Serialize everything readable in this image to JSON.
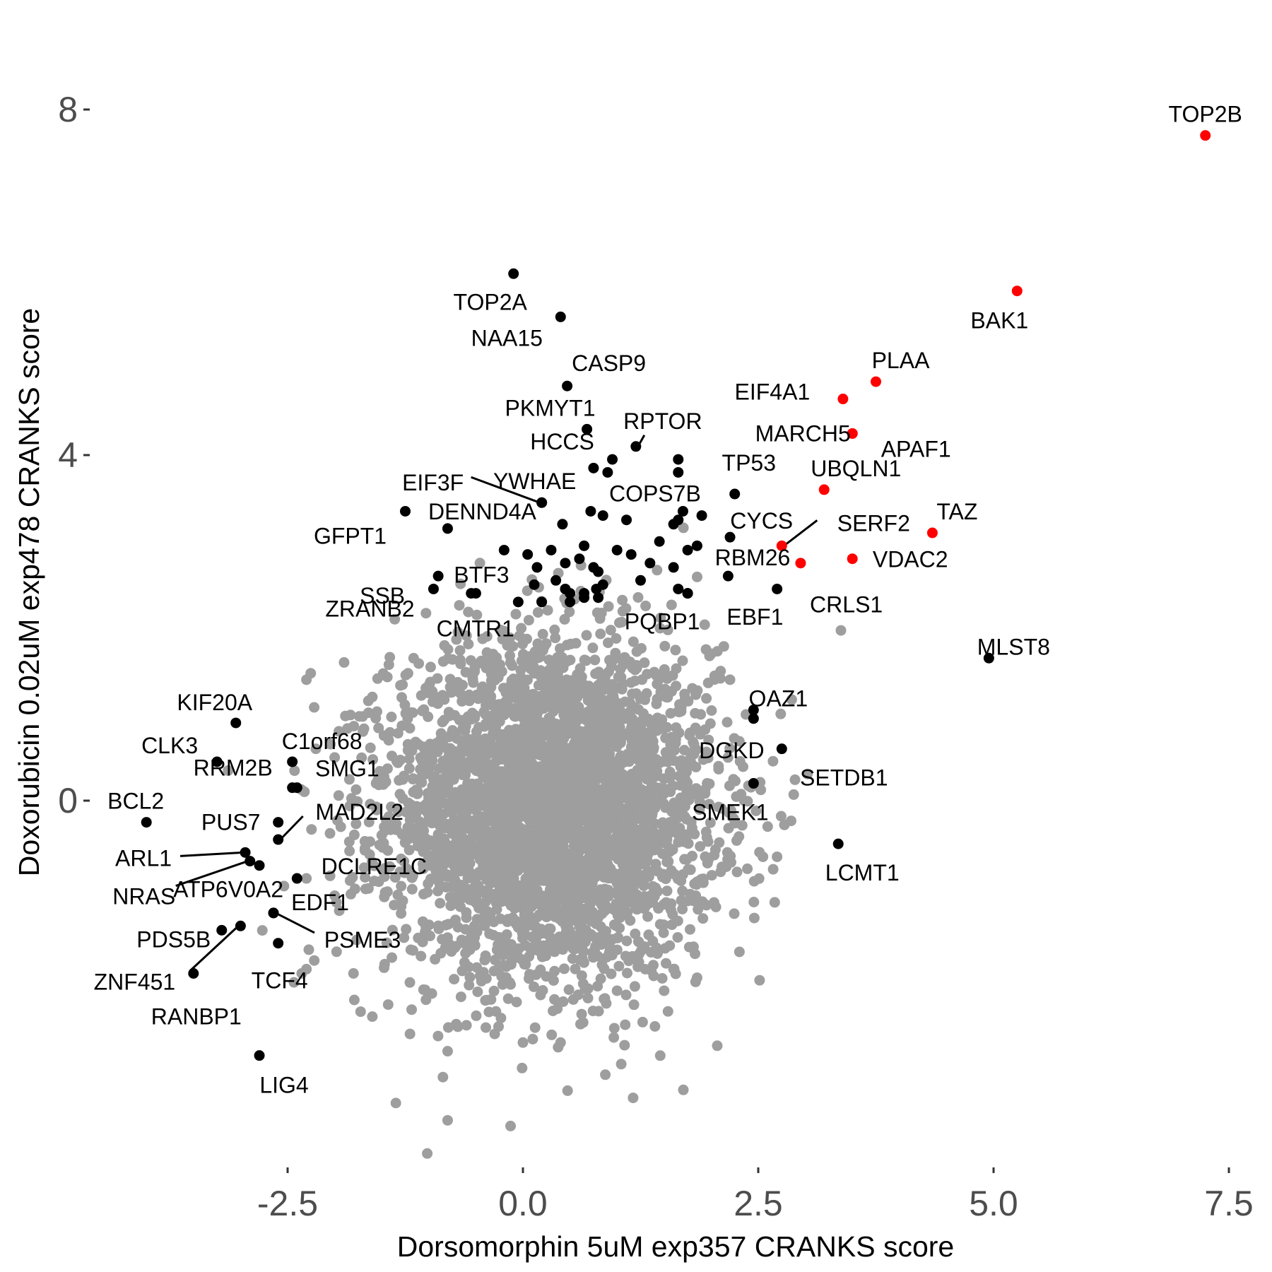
{
  "chart_data": {
    "type": "scatter",
    "xlabel": "Dorsomorphin 5uM exp357 CRANKS score",
    "ylabel": "Doxorubicin 0.02uM exp478 CRANKS score",
    "xlim": [
      -4.4,
      7.6
    ],
    "ylim": [
      -3.95,
      8.3
    ],
    "x_ticks": [
      {
        "value": -2.5,
        "label": "-2.5"
      },
      {
        "value": 0.0,
        "label": "0.0"
      },
      {
        "value": 2.5,
        "label": "2.5"
      },
      {
        "value": 5.0,
        "label": "5.0"
      },
      {
        "value": 7.5,
        "label": "7.5"
      }
    ],
    "y_ticks": [
      {
        "value": 0,
        "label": "0"
      },
      {
        "value": 4,
        "label": "4"
      },
      {
        "value": 8,
        "label": "8"
      }
    ],
    "grid": false,
    "colors": {
      "background": "#9e9e9e",
      "highlight": "#000000",
      "top_hits": "#ff0000"
    },
    "background_cloud": {
      "color": "#9e9e9e",
      "description": "approx. 18000 unlabeled genes",
      "center": [
        0.3,
        -0.1
      ],
      "sd": [
        0.85,
        0.95
      ],
      "outliers": [
        [
          -2.3,
          1.4
        ],
        [
          -1.9,
          1.6
        ],
        [
          -1.6,
          1.2
        ],
        [
          2.0,
          1.7
        ],
        [
          2.1,
          1.5
        ],
        [
          2.2,
          1.4
        ],
        [
          2.35,
          0.0
        ],
        [
          2.45,
          0.2
        ],
        [
          2.6,
          -0.3
        ],
        [
          2.55,
          -0.65
        ],
        [
          -2.3,
          -0.9
        ],
        [
          -2.0,
          -1.1
        ],
        [
          -2.3,
          -1.95
        ],
        [
          -2.35,
          -2.0
        ],
        [
          -1.8,
          -2.0
        ],
        [
          -1.2,
          -2.7
        ],
        [
          -1.6,
          -2.5
        ],
        [
          -0.8,
          -2.9
        ],
        [
          -0.6,
          -2.6
        ],
        [
          -0.3,
          -2.7
        ],
        [
          0.0,
          -2.8
        ],
        [
          0.4,
          -2.8
        ],
        [
          1.0,
          -2.2
        ],
        [
          1.5,
          -2.2
        ],
        [
          1.6,
          -1.95
        ],
        [
          1.85,
          -2.05
        ],
        [
          2.3,
          -1.75
        ],
        [
          2.7,
          -0.65
        ],
        [
          -0.85,
          -3.2
        ],
        [
          -1.35,
          -3.5
        ],
        [
          -0.8,
          -3.7
        ],
        [
          -2.2,
          0.6
        ],
        [
          -2.0,
          0.5
        ],
        [
          -1.7,
          0.8
        ],
        [
          1.8,
          1.3
        ],
        [
          -1.5,
          -0.4
        ]
      ]
    },
    "labeled_genes": [
      {
        "name": "TOP2B",
        "x": 7.25,
        "y": 7.7,
        "color": "#ff0000",
        "label_dx": 0,
        "label_dy": -30,
        "anchor": "middle",
        "leader": false
      },
      {
        "name": "BAK1",
        "x": 5.25,
        "y": 5.9,
        "color": "#ff0000",
        "label_dx": -25,
        "label_dy": 42,
        "anchor": "middle",
        "leader": false
      },
      {
        "name": "PLAA",
        "x": 3.75,
        "y": 4.85,
        "color": "#ff0000",
        "label_dx": 35,
        "label_dy": -30,
        "anchor": "middle",
        "leader": false
      },
      {
        "name": "EIF4A1",
        "x": 3.4,
        "y": 4.65,
        "color": "#ff0000",
        "label_dx": -100,
        "label_dy": -10,
        "anchor": "middle",
        "leader": false
      },
      {
        "name": "MARCH5",
        "x": 3.5,
        "y": 4.25,
        "color": "#ff0000",
        "label_dx": -70,
        "label_dy": 0,
        "anchor": "middle",
        "leader": false
      },
      {
        "name": "APAF1",
        "x": 3.5,
        "y": 4.25,
        "color": "#ff0000",
        "label_dx": 90,
        "label_dy": 22,
        "anchor": "middle",
        "leader": false
      },
      {
        "name": "UBQLN1",
        "x": 3.2,
        "y": 3.6,
        "color": "#ff0000",
        "label_dx": 45,
        "label_dy": -30,
        "anchor": "middle",
        "leader": false
      },
      {
        "name": "TAZ",
        "x": 4.35,
        "y": 3.1,
        "color": "#ff0000",
        "label_dx": 35,
        "label_dy": -30,
        "anchor": "middle",
        "leader": false
      },
      {
        "name": "SERF2",
        "x": 2.75,
        "y": 2.95,
        "color": "#ff0000",
        "label_dx": 130,
        "label_dy": -32,
        "anchor": "middle",
        "leader": true,
        "lx2": 50,
        "ly2": -36
      },
      {
        "name": "RBM26",
        "x": 2.95,
        "y": 2.75,
        "color": "#ff0000",
        "label_dx": -68,
        "label_dy": -8,
        "anchor": "middle",
        "leader": false
      },
      {
        "name": "VDAC2",
        "x": 3.5,
        "y": 2.8,
        "color": "#ff0000",
        "label_dx": 82,
        "label_dy": 1,
        "anchor": "middle",
        "leader": false
      },
      {
        "name": "TOP2A",
        "x": -0.1,
        "y": 6.1,
        "color": "#000000",
        "label_dx": -33,
        "label_dy": 40,
        "anchor": "middle",
        "leader": false
      },
      {
        "name": "NAA15",
        "x": 0.4,
        "y": 5.6,
        "color": "#000000",
        "label_dx": -76,
        "label_dy": 30,
        "anchor": "middle",
        "leader": false
      },
      {
        "name": "CASP9",
        "x": 0.47,
        "y": 4.8,
        "color": "#000000",
        "label_dx": 59,
        "label_dy": -32,
        "anchor": "middle",
        "leader": false
      },
      {
        "name": "PKMYT1",
        "x": 0.68,
        "y": 4.3,
        "color": "#000000",
        "label_dx": -52,
        "label_dy": -30,
        "anchor": "middle",
        "leader": false
      },
      {
        "name": "RPTOR",
        "x": 1.2,
        "y": 4.1,
        "color": "#000000",
        "label_dx": 38,
        "label_dy": -36,
        "anchor": "middle",
        "leader": true,
        "lx2": 12,
        "ly2": -16
      },
      {
        "name": "HCCS",
        "x": 0.95,
        "y": 3.95,
        "color": "#000000",
        "label_dx": -71,
        "label_dy": -25,
        "anchor": "middle",
        "leader": false
      },
      {
        "name": "TP53",
        "x": 1.65,
        "y": 3.95,
        "color": "#000000",
        "label_dx": 100,
        "label_dy": 5,
        "anchor": "middle",
        "leader": false
      },
      {
        "name": "COPS7B",
        "x": 0.9,
        "y": 3.8,
        "color": "#000000",
        "label_dx": 67,
        "label_dy": 30,
        "anchor": "middle",
        "leader": false
      },
      {
        "name": "EIF3F",
        "x": 0.2,
        "y": 3.45,
        "color": "#000000",
        "label_dx": -154,
        "label_dy": -28,
        "anchor": "middle",
        "leader": true,
        "lx2": -100,
        "ly2": -36
      },
      {
        "name": "YWHAE",
        "x": 0.2,
        "y": 3.45,
        "color": "#000000",
        "label_dx": -10,
        "label_dy": -30,
        "anchor": "middle",
        "leader": false
      },
      {
        "name": "CYCS",
        "x": 2.25,
        "y": 3.55,
        "color": "#000000",
        "label_dx": 38,
        "label_dy": 38,
        "anchor": "middle",
        "leader": false
      },
      {
        "name": "DENND4A",
        "x": -0.8,
        "y": 3.15,
        "color": "#000000",
        "label_dx": 49,
        "label_dy": -24,
        "anchor": "middle",
        "leader": false
      },
      {
        "name": "GFPT1",
        "x": -1.25,
        "y": 3.35,
        "color": "#000000",
        "label_dx": -78,
        "label_dy": 35,
        "anchor": "middle",
        "leader": false
      },
      {
        "name": "SSB",
        "x": -0.9,
        "y": 2.6,
        "color": "#000000",
        "label_dx": -79,
        "label_dy": 28,
        "anchor": "middle",
        "leader": false
      },
      {
        "name": "BTF3",
        "x": -0.5,
        "y": 2.4,
        "color": "#000000",
        "label_dx": 8,
        "label_dy": -26,
        "anchor": "middle",
        "leader": false
      },
      {
        "name": "ZRANB2",
        "x": -0.95,
        "y": 2.45,
        "color": "#000000",
        "label_dx": -90,
        "label_dy": 28,
        "anchor": "middle",
        "leader": false
      },
      {
        "name": "CMTR1",
        "x": -0.55,
        "y": 2.4,
        "color": "#000000",
        "label_dx": 6,
        "label_dy": 50,
        "anchor": "middle",
        "leader": false
      },
      {
        "name": "PQBP1",
        "x": 1.75,
        "y": 2.4,
        "color": "#000000",
        "label_dx": -36,
        "label_dy": 40,
        "anchor": "middle",
        "leader": false
      },
      {
        "name": "EBF1",
        "x": 2.18,
        "y": 2.6,
        "color": "#000000",
        "label_dx": 38,
        "label_dy": 58,
        "anchor": "middle",
        "leader": false
      },
      {
        "name": "CRLS1",
        "x": 2.7,
        "y": 2.45,
        "color": "#000000",
        "label_dx": 98,
        "label_dy": 22,
        "anchor": "middle",
        "leader": false
      },
      {
        "name": "MLST8",
        "x": 4.95,
        "y": 1.65,
        "color": "#000000",
        "label_dx": 35,
        "label_dy": -16,
        "anchor": "middle",
        "leader": false
      },
      {
        "name": "OAZ1",
        "x": 2.45,
        "y": 1.05,
        "color": "#000000",
        "label_dx": 35,
        "label_dy": -16,
        "anchor": "middle",
        "leader": false
      },
      {
        "name": "DGKD",
        "x": 2.45,
        "y": 0.95,
        "color": "#000000",
        "label_dx": -31,
        "label_dy": 45,
        "anchor": "middle",
        "leader": false
      },
      {
        "name": "SETDB1",
        "x": 2.75,
        "y": 0.6,
        "color": "#000000",
        "label_dx": 88,
        "label_dy": 41,
        "anchor": "middle",
        "leader": false
      },
      {
        "name": "SMEK1",
        "x": 2.45,
        "y": 0.2,
        "color": "#000000",
        "label_dx": -33,
        "label_dy": 41,
        "anchor": "middle",
        "leader": false
      },
      {
        "name": "LCMT1",
        "x": 3.35,
        "y": -0.5,
        "color": "#000000",
        "label_dx": 34,
        "label_dy": 41,
        "anchor": "middle",
        "leader": false
      },
      {
        "name": "KIF20A",
        "x": -3.05,
        "y": 0.9,
        "color": "#000000",
        "label_dx": -30,
        "label_dy": -29,
        "anchor": "middle",
        "leader": false
      },
      {
        "name": "CLK3",
        "x": -3.25,
        "y": 0.45,
        "color": "#000000",
        "label_dx": -67,
        "label_dy": -23,
        "anchor": "middle",
        "leader": false
      },
      {
        "name": "C1orf68",
        "x": -2.45,
        "y": 0.45,
        "color": "#000000",
        "label_dx": 42,
        "label_dy": -29,
        "anchor": "middle",
        "leader": false
      },
      {
        "name": "RRM2B",
        "x": -2.45,
        "y": 0.15,
        "color": "#000000",
        "label_dx": -84,
        "label_dy": -28,
        "anchor": "middle",
        "leader": false
      },
      {
        "name": "SMG1",
        "x": -2.4,
        "y": 0.15,
        "color": "#000000",
        "label_dx": 71,
        "label_dy": -27,
        "anchor": "middle",
        "leader": false
      },
      {
        "name": "BCL2",
        "x": -4.0,
        "y": -0.25,
        "color": "#000000",
        "label_dx": -15,
        "label_dy": -30,
        "anchor": "middle",
        "leader": false
      },
      {
        "name": "PUS7",
        "x": -2.6,
        "y": -0.25,
        "color": "#000000",
        "label_dx": -67,
        "label_dy": 0,
        "anchor": "middle",
        "leader": false
      },
      {
        "name": "MAD2L2",
        "x": -2.6,
        "y": -0.45,
        "color": "#000000",
        "label_dx": 115,
        "label_dy": -39,
        "anchor": "middle",
        "leader": true,
        "lx2": 35,
        "ly2": -33
      },
      {
        "name": "ARL1",
        "x": -2.95,
        "y": -0.6,
        "color": "#000000",
        "label_dx": -144,
        "label_dy": 8,
        "anchor": "middle",
        "leader": true,
        "lx2": -92,
        "ly2": 5
      },
      {
        "name": "DCLRE1C",
        "x": -2.4,
        "y": -0.9,
        "color": "#000000",
        "label_dx": 109,
        "label_dy": -17,
        "anchor": "middle",
        "leader": false
      },
      {
        "name": "NRAS",
        "x": -2.9,
        "y": -0.7,
        "color": "#000000",
        "label_dx": -150,
        "label_dy": 50,
        "anchor": "middle",
        "leader": true,
        "lx2": -105,
        "ly2": 35
      },
      {
        "name": "ATP6V0A2",
        "x": -2.8,
        "y": -0.75,
        "color": "#000000",
        "label_dx": -44,
        "label_dy": 34,
        "anchor": "middle",
        "leader": false
      },
      {
        "name": "EDF1",
        "x": -2.65,
        "y": -1.3,
        "color": "#000000",
        "label_dx": 66,
        "label_dy": -15,
        "anchor": "middle",
        "leader": false
      },
      {
        "name": "PSME3",
        "x": -2.65,
        "y": -1.3,
        "color": "#000000",
        "label_dx": 126,
        "label_dy": 38,
        "anchor": "middle",
        "leader": true,
        "lx2": 58,
        "ly2": 28
      },
      {
        "name": "PDS5B",
        "x": -3.2,
        "y": -1.5,
        "color": "#000000",
        "label_dx": -68,
        "label_dy": 13,
        "anchor": "middle",
        "leader": false
      },
      {
        "name": "ZNF451",
        "x": -3.0,
        "y": -1.45,
        "color": "#000000",
        "label_dx": -150,
        "label_dy": 79,
        "anchor": "middle",
        "leader": true,
        "lx2": -72,
        "ly2": 64
      },
      {
        "name": "RANBP1",
        "x": -3.5,
        "y": -2.0,
        "color": "#000000",
        "label_dx": 4,
        "label_dy": 61,
        "anchor": "middle",
        "leader": false
      },
      {
        "name": "TCF4",
        "x": -2.6,
        "y": -1.65,
        "color": "#000000",
        "label_dx": 2,
        "label_dy": 53,
        "anchor": "middle",
        "leader": false
      },
      {
        "name": "LIG4",
        "x": -2.8,
        "y": -2.95,
        "color": "#000000",
        "label_dx": 35,
        "label_dy": 42,
        "anchor": "middle",
        "leader": false
      }
    ],
    "unlabeled_highlight_points": [
      [
        0.75,
        3.85
      ],
      [
        1.65,
        3.8
      ],
      [
        0.72,
        3.35
      ],
      [
        0.85,
        3.3
      ],
      [
        1.1,
        3.25
      ],
      [
        0.42,
        3.2
      ],
      [
        1.7,
        3.35
      ],
      [
        1.65,
        3.25
      ],
      [
        1.6,
        3.2
      ],
      [
        1.9,
        3.3
      ],
      [
        2.2,
        3.05
      ],
      [
        1.45,
        3.0
      ],
      [
        1.85,
        2.95
      ],
      [
        1.75,
        2.9
      ],
      [
        -0.2,
        2.9
      ],
      [
        0.05,
        2.85
      ],
      [
        0.3,
        2.9
      ],
      [
        0.65,
        2.95
      ],
      [
        0.6,
        2.8
      ],
      [
        0.45,
        2.75
      ],
      [
        1.0,
        2.9
      ],
      [
        1.15,
        2.85
      ],
      [
        0.15,
        2.7
      ],
      [
        1.35,
        2.75
      ],
      [
        1.6,
        2.7
      ],
      [
        0.75,
        2.7
      ],
      [
        0.8,
        2.65
      ],
      [
        0.85,
        2.5
      ],
      [
        0.78,
        2.45
      ],
      [
        1.25,
        2.55
      ],
      [
        1.65,
        2.45
      ],
      [
        1.75,
        2.4
      ],
      [
        0.45,
        2.45
      ],
      [
        0.5,
        2.4
      ],
      [
        0.65,
        2.4
      ],
      [
        0.8,
        2.35
      ],
      [
        0.2,
        2.3
      ],
      [
        -0.05,
        2.3
      ],
      [
        0.5,
        2.3
      ],
      [
        0.65,
        2.35
      ],
      [
        0.35,
        2.55
      ],
      [
        0.12,
        2.5
      ]
    ]
  }
}
